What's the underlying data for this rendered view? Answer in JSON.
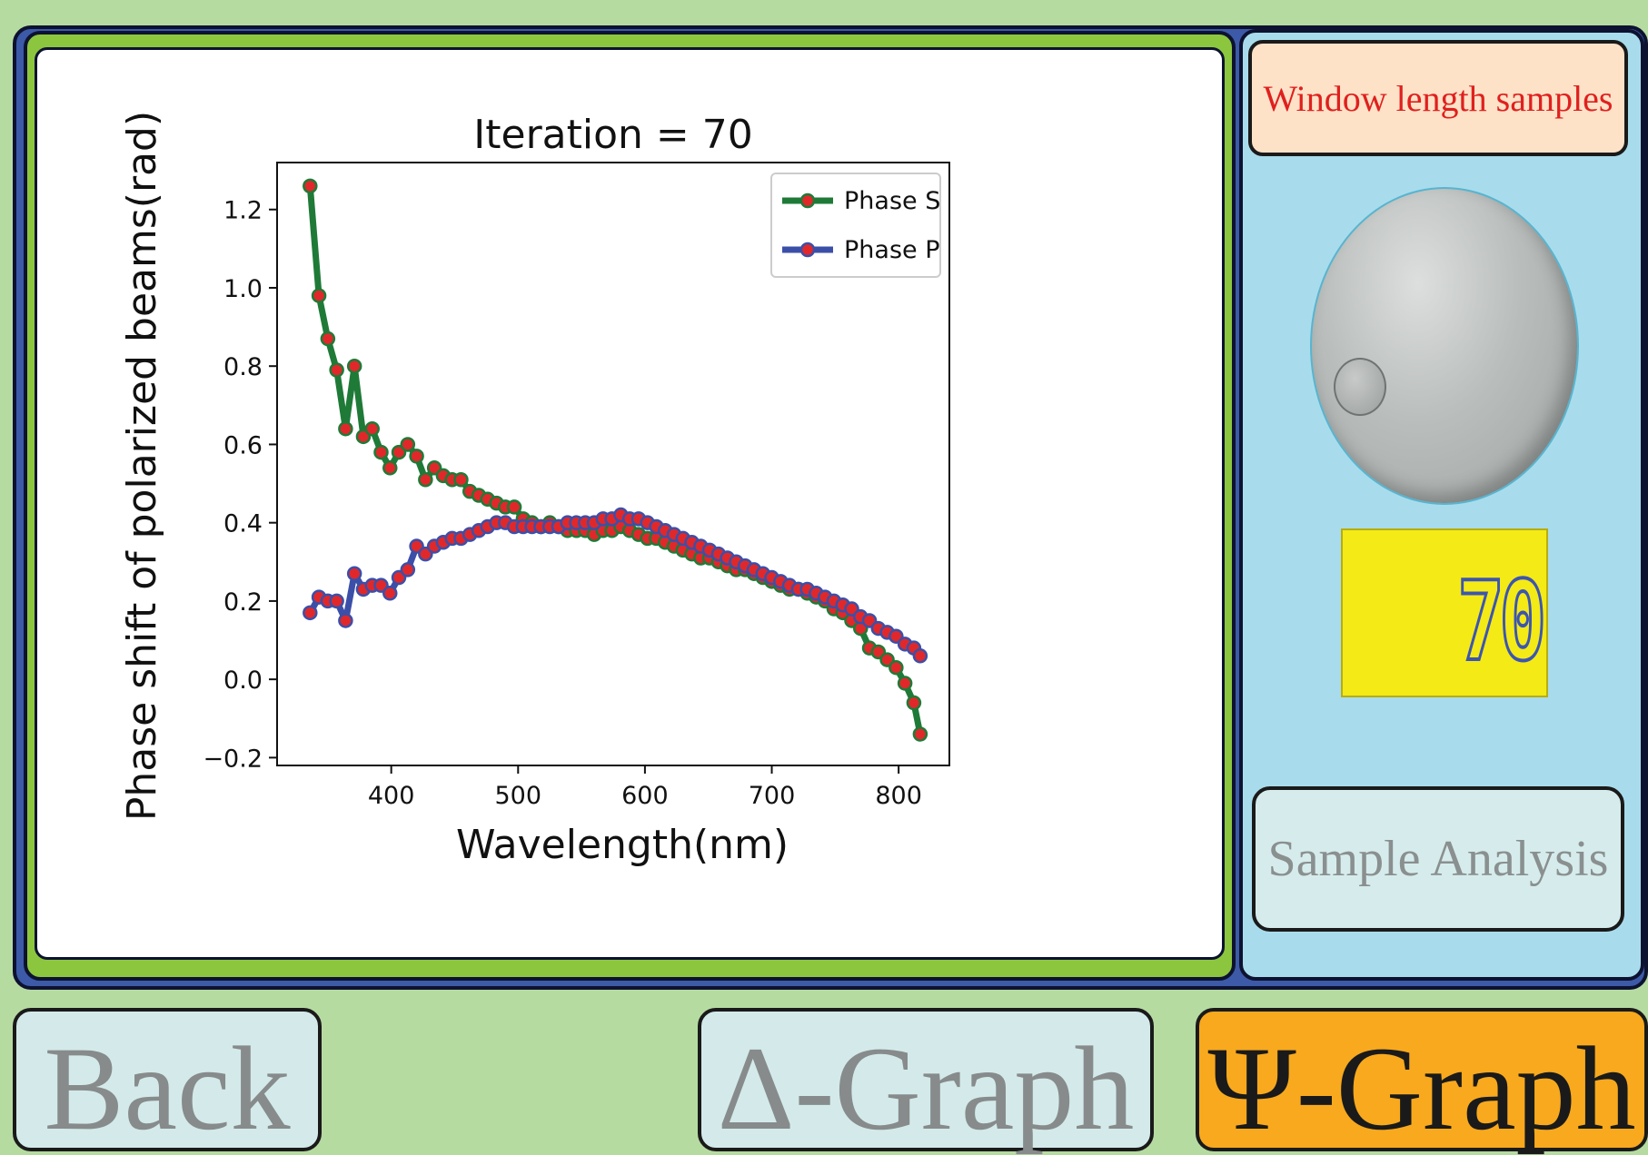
{
  "side": {
    "window_length_label": "Window length samples",
    "lcd_value": "70",
    "sample_analysis_label": "Sample Analysis"
  },
  "buttons": {
    "back_label": "Back",
    "delta_graph_label": "Δ-Graph",
    "psi_graph_label": "Ψ-Graph"
  },
  "colors": {
    "phase_s": "#1f7a38",
    "phase_p": "#3c4fa8",
    "marker": "#e0282a",
    "psi_button": "#f8a91d",
    "lcd": "#f4ea16"
  },
  "chart_data": {
    "type": "line",
    "title": "Iteration = 70",
    "xlabel": "Wavelength(nm)",
    "ylabel": "Phase shift of polarized beams(rad)",
    "xlim": [
      310,
      840
    ],
    "ylim": [
      -0.22,
      1.32
    ],
    "xticks": [
      400,
      500,
      600,
      700,
      800
    ],
    "yticks": [
      -0.2,
      0.0,
      0.2,
      0.4,
      0.6,
      0.8,
      1.0,
      1.2
    ],
    "ytick_labels": [
      "−0.2",
      "0.0",
      "0.2",
      "0.4",
      "0.6",
      "0.8",
      "1.0",
      "1.2"
    ],
    "grid": false,
    "legend_position": "top-right",
    "series": [
      {
        "name": "Phase S",
        "x": [
          336,
          343,
          350,
          357,
          364,
          371,
          378,
          385,
          392,
          399,
          406,
          413,
          420,
          427,
          434,
          441,
          448,
          455,
          462,
          469,
          476,
          483,
          490,
          497,
          504,
          511,
          518,
          525,
          532,
          539,
          546,
          553,
          560,
          567,
          574,
          581,
          588,
          595,
          602,
          609,
          616,
          623,
          630,
          637,
          644,
          651,
          658,
          665,
          672,
          679,
          686,
          693,
          700,
          707,
          714,
          721,
          728,
          735,
          742,
          749,
          756,
          763,
          770,
          777,
          784,
          791,
          798,
          805,
          812,
          817
        ],
        "y": [
          1.26,
          0.98,
          0.87,
          0.79,
          0.64,
          0.8,
          0.62,
          0.64,
          0.58,
          0.54,
          0.58,
          0.6,
          0.57,
          0.51,
          0.54,
          0.52,
          0.51,
          0.51,
          0.48,
          0.47,
          0.46,
          0.45,
          0.44,
          0.44,
          0.41,
          0.4,
          0.39,
          0.4,
          0.39,
          0.38,
          0.38,
          0.38,
          0.37,
          0.38,
          0.38,
          0.39,
          0.38,
          0.37,
          0.36,
          0.36,
          0.35,
          0.34,
          0.33,
          0.32,
          0.31,
          0.31,
          0.3,
          0.29,
          0.28,
          0.28,
          0.27,
          0.26,
          0.25,
          0.24,
          0.23,
          0.23,
          0.22,
          0.21,
          0.2,
          0.18,
          0.17,
          0.15,
          0.13,
          0.08,
          0.07,
          0.05,
          0.03,
          -0.01,
          -0.06,
          -0.14
        ]
      },
      {
        "name": "Phase P",
        "x": [
          336,
          343,
          350,
          357,
          364,
          371,
          378,
          385,
          392,
          399,
          406,
          413,
          420,
          427,
          434,
          441,
          448,
          455,
          462,
          469,
          476,
          483,
          490,
          497,
          504,
          511,
          518,
          525,
          532,
          539,
          546,
          553,
          560,
          567,
          574,
          581,
          588,
          595,
          602,
          609,
          616,
          623,
          630,
          637,
          644,
          651,
          658,
          665,
          672,
          679,
          686,
          693,
          700,
          707,
          714,
          721,
          728,
          735,
          742,
          749,
          756,
          763,
          770,
          777,
          784,
          791,
          798,
          805,
          812,
          817
        ],
        "y": [
          0.17,
          0.21,
          0.2,
          0.2,
          0.15,
          0.27,
          0.23,
          0.24,
          0.24,
          0.22,
          0.26,
          0.28,
          0.34,
          0.32,
          0.34,
          0.35,
          0.36,
          0.36,
          0.37,
          0.38,
          0.39,
          0.4,
          0.4,
          0.39,
          0.39,
          0.39,
          0.39,
          0.39,
          0.39,
          0.4,
          0.4,
          0.4,
          0.4,
          0.41,
          0.41,
          0.42,
          0.41,
          0.41,
          0.4,
          0.39,
          0.38,
          0.37,
          0.36,
          0.35,
          0.34,
          0.33,
          0.32,
          0.31,
          0.3,
          0.29,
          0.28,
          0.27,
          0.26,
          0.25,
          0.24,
          0.23,
          0.23,
          0.22,
          0.21,
          0.2,
          0.19,
          0.18,
          0.16,
          0.15,
          0.13,
          0.12,
          0.11,
          0.09,
          0.08,
          0.06
        ]
      }
    ]
  }
}
